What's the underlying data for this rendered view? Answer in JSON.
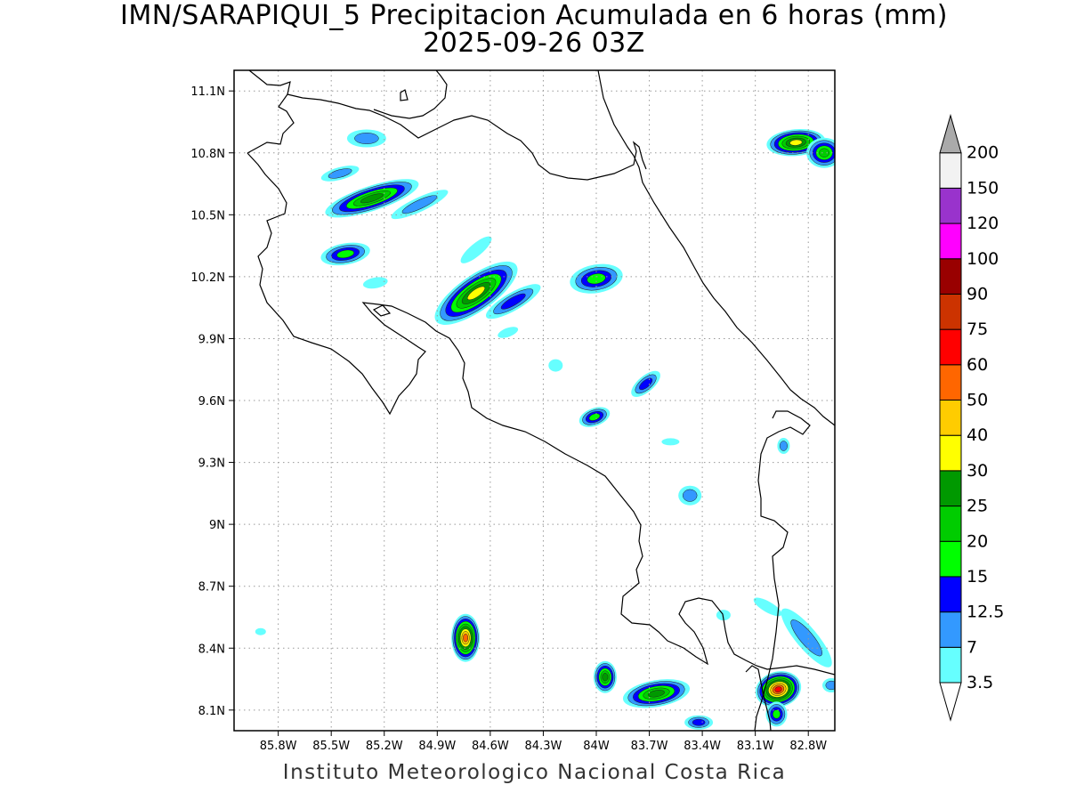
{
  "title": {
    "line1": "IMN/SARAPIQUI_5 Precipitacion Acumulada en 6 horas (mm)",
    "line2": "2025-09-26 03Z"
  },
  "footer": "Instituto Meteorologico Nacional Costa Rica",
  "map": {
    "lon_range": [
      -86.05,
      -82.65
    ],
    "lat_range": [
      8.0,
      11.2
    ],
    "lat_ticks": [
      {
        "value": 8.1,
        "label": "8.1N"
      },
      {
        "value": 8.4,
        "label": "8.4N"
      },
      {
        "value": 8.7,
        "label": "8.7N"
      },
      {
        "value": 9.0,
        "label": "9N"
      },
      {
        "value": 9.3,
        "label": "9.3N"
      },
      {
        "value": 9.6,
        "label": "9.6N"
      },
      {
        "value": 9.9,
        "label": "9.9N"
      },
      {
        "value": 10.2,
        "label": "10.2N"
      },
      {
        "value": 10.5,
        "label": "10.5N"
      },
      {
        "value": 10.8,
        "label": "10.8N"
      },
      {
        "value": 11.1,
        "label": "11.1N"
      }
    ],
    "lon_ticks": [
      {
        "value": -85.8,
        "label": "85.8W"
      },
      {
        "value": -85.5,
        "label": "85.5W"
      },
      {
        "value": -85.2,
        "label": "85.2W"
      },
      {
        "value": -84.9,
        "label": "84.9W"
      },
      {
        "value": -84.6,
        "label": "84.6W"
      },
      {
        "value": -84.3,
        "label": "84.3W"
      },
      {
        "value": -84.0,
        "label": "84W"
      },
      {
        "value": -83.7,
        "label": "83.7W"
      },
      {
        "value": -83.4,
        "label": "83.4W"
      },
      {
        "value": -83.1,
        "label": "83.1W"
      },
      {
        "value": -82.8,
        "label": "82.8W"
      }
    ],
    "grid": true
  },
  "colorbar": {
    "levels": [
      {
        "label": "3.5",
        "color": "#66ffff"
      },
      {
        "label": "7",
        "color": "#3399ff"
      },
      {
        "label": "12.5",
        "color": "#0000ff"
      },
      {
        "label": "15",
        "color": "#00ff00"
      },
      {
        "label": "20",
        "color": "#00cc00"
      },
      {
        "label": "25",
        "color": "#009900"
      },
      {
        "label": "30",
        "color": "#ffff00"
      },
      {
        "label": "40",
        "color": "#ffcc00"
      },
      {
        "label": "50",
        "color": "#ff6600"
      },
      {
        "label": "60",
        "color": "#ff0000"
      },
      {
        "label": "75",
        "color": "#cc3300"
      },
      {
        "label": "90",
        "color": "#990000"
      },
      {
        "label": "100",
        "color": "#ff00ff"
      },
      {
        "label": "120",
        "color": "#9933cc"
      },
      {
        "label": "150",
        "color": "#f2f2f2"
      },
      {
        "label": "200",
        "color": "#aaaaaa"
      }
    ]
  },
  "cells": [
    {
      "lon": -85.27,
      "lat": 10.58,
      "rx": 55,
      "ry": 14,
      "rot": -18,
      "max": 6
    },
    {
      "lon": -85.0,
      "lat": 10.55,
      "rx": 35,
      "ry": 8,
      "rot": -25,
      "max": 2
    },
    {
      "lon": -85.42,
      "lat": 10.31,
      "rx": 28,
      "ry": 12,
      "rot": -10,
      "max": 4
    },
    {
      "lon": -85.3,
      "lat": 10.87,
      "rx": 22,
      "ry": 10,
      "rot": 0,
      "max": 2
    },
    {
      "lon": -85.45,
      "lat": 10.7,
      "rx": 22,
      "ry": 7,
      "rot": -15,
      "max": 2
    },
    {
      "lon": -84.68,
      "lat": 10.12,
      "rx": 55,
      "ry": 20,
      "rot": -35,
      "max": 7
    },
    {
      "lon": -84.47,
      "lat": 10.08,
      "rx": 35,
      "ry": 10,
      "rot": -30,
      "max": 3
    },
    {
      "lon": -84.68,
      "lat": 10.33,
      "rx": 22,
      "ry": 7,
      "rot": -40,
      "max": 1
    },
    {
      "lon": -84.0,
      "lat": 10.19,
      "rx": 30,
      "ry": 16,
      "rot": -10,
      "max": 4
    },
    {
      "lon": -83.72,
      "lat": 9.68,
      "rx": 20,
      "ry": 9,
      "rot": -40,
      "max": 3
    },
    {
      "lon": -84.01,
      "lat": 9.52,
      "rx": 18,
      "ry": 10,
      "rot": -20,
      "max": 4
    },
    {
      "lon": -83.47,
      "lat": 9.14,
      "rx": 13,
      "ry": 11,
      "rot": 0,
      "max": 2
    },
    {
      "lon": -84.74,
      "lat": 8.45,
      "rx": 16,
      "ry": 27,
      "rot": 0,
      "max": 9
    },
    {
      "lon": -83.95,
      "lat": 8.26,
      "rx": 13,
      "ry": 18,
      "rot": 0,
      "max": 6
    },
    {
      "lon": -83.66,
      "lat": 8.18,
      "rx": 38,
      "ry": 15,
      "rot": -10,
      "max": 6
    },
    {
      "lon": -82.97,
      "lat": 8.2,
      "rx": 26,
      "ry": 20,
      "rot": -15,
      "max": 10
    },
    {
      "lon": -82.87,
      "lat": 10.85,
      "rx": 33,
      "ry": 15,
      "rot": -5,
      "max": 7
    },
    {
      "lon": -82.71,
      "lat": 10.8,
      "rx": 20,
      "ry": 17,
      "rot": 0,
      "max": 5
    },
    {
      "lon": -82.81,
      "lat": 8.45,
      "rx": 42,
      "ry": 12,
      "rot": 50,
      "max": 2
    },
    {
      "lon": -83.42,
      "lat": 8.04,
      "rx": 16,
      "ry": 8,
      "rot": 0,
      "max": 3
    },
    {
      "lon": -84.5,
      "lat": 9.93,
      "rx": 12,
      "ry": 5,
      "rot": -20,
      "max": 1
    },
    {
      "lon": -84.23,
      "lat": 9.77,
      "rx": 8,
      "ry": 7,
      "rot": 0,
      "max": 1
    },
    {
      "lon": -85.9,
      "lat": 8.48,
      "rx": 6,
      "ry": 4,
      "rot": 0,
      "max": 1
    },
    {
      "lon": -83.58,
      "lat": 9.4,
      "rx": 10,
      "ry": 4,
      "rot": 0,
      "max": 1
    },
    {
      "lon": -82.94,
      "lat": 9.38,
      "rx": 7,
      "ry": 9,
      "rot": 0,
      "max": 2
    },
    {
      "lon": -82.67,
      "lat": 8.22,
      "rx": 10,
      "ry": 8,
      "rot": 0,
      "max": 2
    },
    {
      "lon": -83.03,
      "lat": 8.6,
      "rx": 18,
      "ry": 6,
      "rot": 30,
      "max": 1
    },
    {
      "lon": -85.25,
      "lat": 10.17,
      "rx": 14,
      "ry": 6,
      "rot": -10,
      "max": 1
    },
    {
      "lon": -82.98,
      "lat": 8.08,
      "rx": 12,
      "ry": 14,
      "rot": 0,
      "max": 4
    },
    {
      "lon": -83.28,
      "lat": 8.56,
      "rx": 8,
      "ry": 6,
      "rot": 0,
      "max": 1
    }
  ]
}
